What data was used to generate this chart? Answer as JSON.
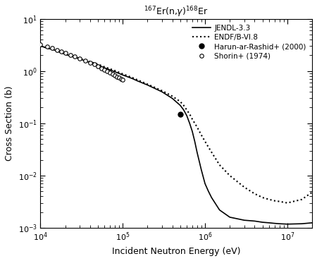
{
  "title": "$^{167}$Er(n,$\\gamma$)$^{168}$Er",
  "xlabel": "Incident Neutron Energy (eV)",
  "ylabel": "Cross Section (b)",
  "xlim": [
    10000.0,
    20000000.0
  ],
  "ylim": [
    0.001,
    10.0
  ],
  "legend_labels": [
    "JENDL-3.3",
    "ENDF/B-VI.8",
    "Harun-ar-Rashid+ (2000)",
    "Shorin+ (1974)"
  ],
  "jendl_x": [
    10000.0,
    15000.0,
    20000.0,
    30000.0,
    40000.0,
    50000.0,
    60000.0,
    70000.0,
    80000.0,
    100000.0,
    130000.0,
    150000.0,
    200000.0,
    300000.0,
    400000.0,
    500000.0,
    550000.0,
    600000.0,
    650000.0,
    700000.0,
    750000.0,
    800000.0,
    900000.0,
    1000000.0,
    1100000.0,
    1200000.0,
    1500000.0,
    2000000.0,
    3000000.0,
    4000000.0,
    5000000.0,
    6000000.0,
    7000000.0,
    8000000.0,
    10000000.0,
    15000000.0,
    20000000.0
  ],
  "jendl_y": [
    3.0,
    2.5,
    2.1,
    1.7,
    1.45,
    1.3,
    1.15,
    1.05,
    0.97,
    0.84,
    0.72,
    0.65,
    0.54,
    0.4,
    0.3,
    0.22,
    0.18,
    0.14,
    0.1,
    0.07,
    0.045,
    0.028,
    0.013,
    0.007,
    0.005,
    0.0038,
    0.0022,
    0.0016,
    0.0014,
    0.00135,
    0.00128,
    0.00125,
    0.00122,
    0.0012,
    0.00118,
    0.0012,
    0.00125
  ],
  "endf_x": [
    10000.0,
    15000.0,
    20000.0,
    30000.0,
    40000.0,
    50000.0,
    60000.0,
    70000.0,
    80000.0,
    100000.0,
    130000.0,
    150000.0,
    200000.0,
    300000.0,
    400000.0,
    500000.0,
    550000.0,
    600000.0,
    650000.0,
    700000.0,
    750000.0,
    800000.0,
    900000.0,
    1000000.0,
    1100000.0,
    1200000.0,
    1500000.0,
    2000000.0,
    3000000.0,
    4000000.0,
    5000000.0,
    6000000.0,
    7000000.0,
    8000000.0,
    10000000.0,
    15000000.0,
    20000000.0
  ],
  "endf_y": [
    3.0,
    2.5,
    2.1,
    1.75,
    1.5,
    1.35,
    1.2,
    1.1,
    1.02,
    0.88,
    0.75,
    0.68,
    0.56,
    0.42,
    0.33,
    0.26,
    0.22,
    0.18,
    0.15,
    0.12,
    0.1,
    0.085,
    0.06,
    0.045,
    0.035,
    0.028,
    0.016,
    0.01,
    0.006,
    0.0045,
    0.0038,
    0.0035,
    0.0033,
    0.0032,
    0.003,
    0.0035,
    0.0048
  ],
  "harun_x": [
    500000.0
  ],
  "harun_y": [
    0.15
  ],
  "shorin_x": [
    10000.0,
    12000.0,
    14000.0,
    16000.0,
    18000.0,
    20000.0,
    23000.0,
    26000.0,
    30000.0,
    35000.0,
    40000.0,
    45000.0,
    50000.0,
    55000.0,
    60000.0,
    65000.0,
    70000.0,
    75000.0,
    80000.0,
    85000.0,
    90000.0,
    95000.0,
    100000.0
  ],
  "shorin_y": [
    3.2,
    2.95,
    2.75,
    2.55,
    2.38,
    2.22,
    2.05,
    1.9,
    1.73,
    1.57,
    1.44,
    1.33,
    1.22,
    1.13,
    1.05,
    0.98,
    0.92,
    0.87,
    0.82,
    0.78,
    0.74,
    0.71,
    0.68
  ]
}
